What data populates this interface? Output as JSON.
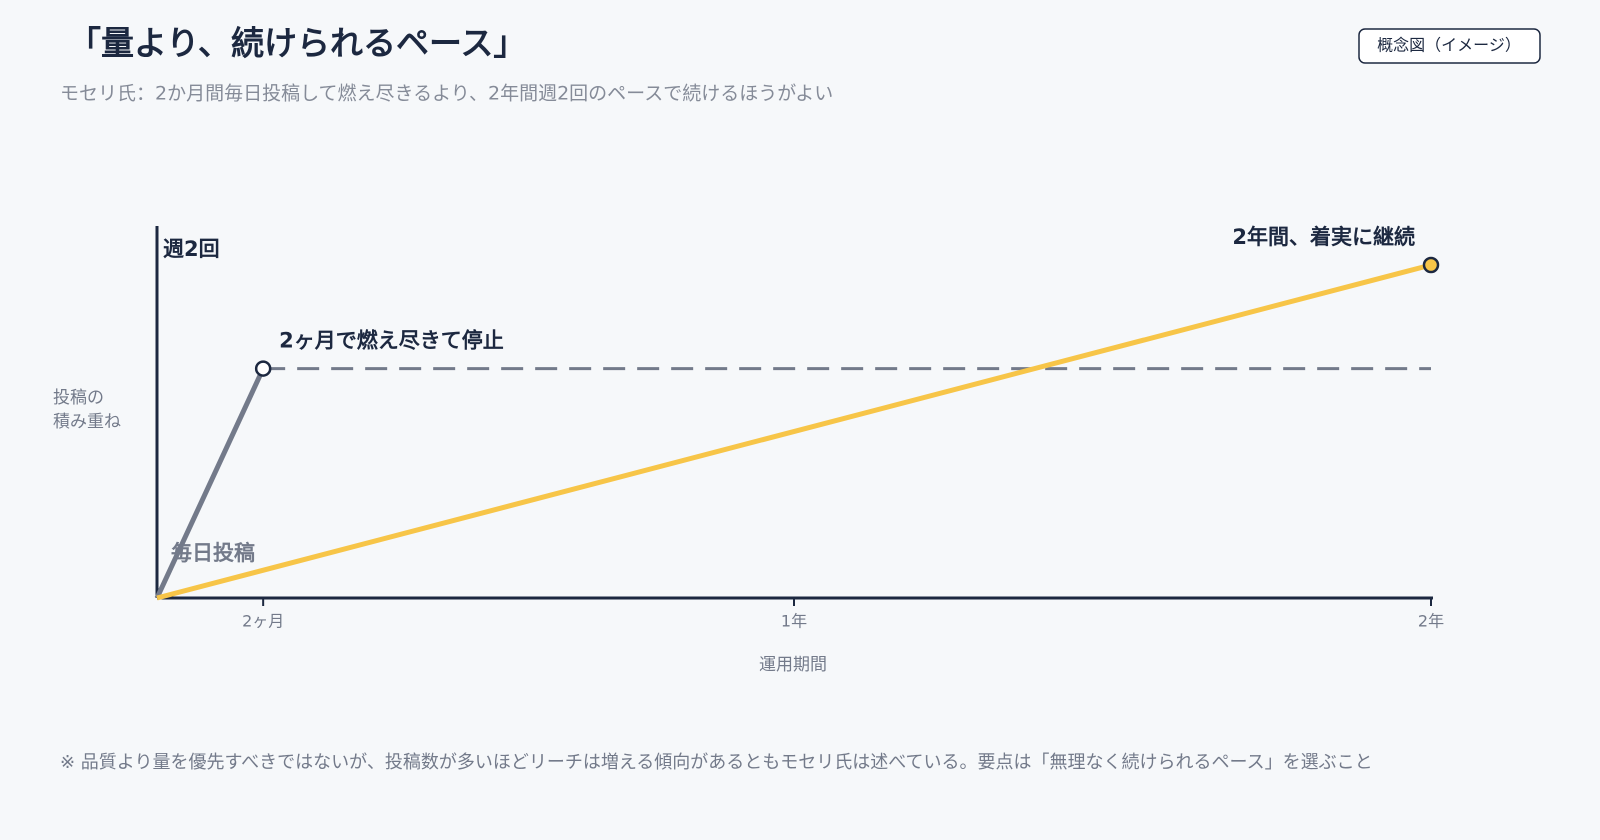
{
  "chart_data": {
    "type": "line",
    "title": "「量より、続けられるペース」",
    "subtitle": "モセリ氏：2か月間毎日投稿して燃え尽きるより、2年間週2回のペースで続けるほうがよい",
    "badge": "概念図（イメージ）",
    "x_label": "運用期間",
    "y_label": [
      "投稿の",
      "積み重ね"
    ],
    "xlim": [
      0,
      24
    ],
    "xticks": [
      {
        "value": 2,
        "label": "2ヶ月"
      },
      {
        "value": 12,
        "label": "1年"
      },
      {
        "value": 24,
        "label": "2年"
      }
    ],
    "ylim": [
      0,
      100
    ],
    "series": [
      {
        "name": "毎日投稿",
        "color": "#737a8a",
        "x": [
          0,
          2,
          24
        ],
        "values": [
          0,
          62,
          62
        ]
      },
      {
        "name": "週2回",
        "color": "#f7c548",
        "x": [
          0,
          24
        ],
        "values": [
          0,
          90
        ]
      }
    ],
    "annotations": [
      "2ヶ月で燃え尽きて停止",
      "2年間、着実に継続"
    ],
    "footnote": "※ 品質より量を優先すべきではないが、投稿数が多いほどリーチは増える傾向があるともモセリ氏は述べている。要点は「無理なく続けられるペース」を選ぶこと"
  }
}
